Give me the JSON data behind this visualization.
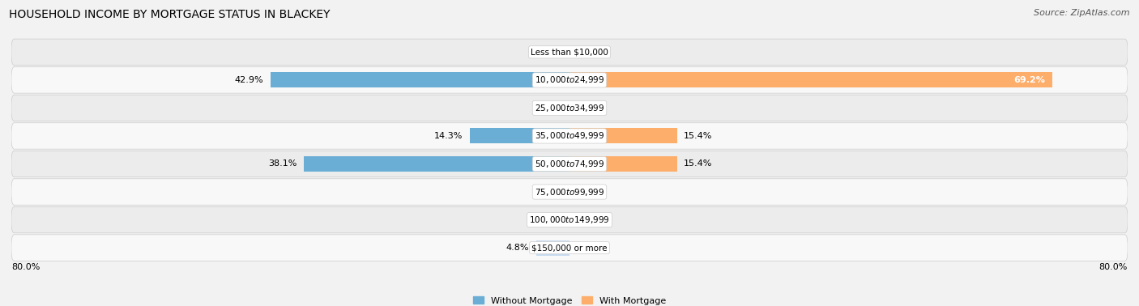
{
  "title": "HOUSEHOLD INCOME BY MORTGAGE STATUS IN BLACKEY",
  "source": "Source: ZipAtlas.com",
  "categories": [
    "Less than $10,000",
    "$10,000 to $24,999",
    "$25,000 to $34,999",
    "$35,000 to $49,999",
    "$50,000 to $74,999",
    "$75,000 to $99,999",
    "$100,000 to $149,999",
    "$150,000 or more"
  ],
  "without_mortgage": [
    0.0,
    42.9,
    0.0,
    14.3,
    38.1,
    0.0,
    0.0,
    4.8
  ],
  "with_mortgage": [
    0.0,
    69.2,
    0.0,
    15.4,
    15.4,
    0.0,
    0.0,
    0.0
  ],
  "color_without": "#6aaed6",
  "color_with": "#fdae6b",
  "color_without_light": "#c6dbef",
  "color_with_light": "#fdd0a2",
  "max_val": 80.0,
  "legend_without": "Without Mortgage",
  "legend_with": "With Mortgage",
  "bg_color": "#f2f2f2",
  "row_bg_even": "#ececec",
  "row_bg_odd": "#f8f8f8",
  "title_fontsize": 10,
  "source_fontsize": 8,
  "label_fontsize": 8,
  "category_fontsize": 7.5
}
